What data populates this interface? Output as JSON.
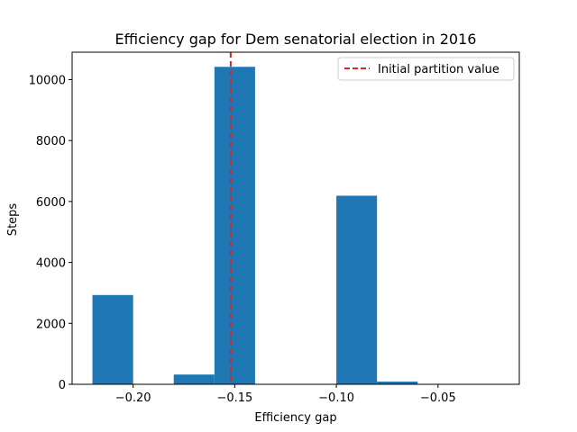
{
  "chart_data": {
    "type": "bar",
    "title": "Efficiency gap for Dem senatorial election in 2016",
    "xlabel": "Efficiency gap",
    "ylabel": "Steps",
    "xlim": [
      -0.23,
      -0.01
    ],
    "ylim": [
      0,
      10900
    ],
    "xticks": [
      -0.2,
      -0.15,
      -0.1,
      -0.05
    ],
    "xtick_labels": [
      "−0.20",
      "−0.15",
      "−0.10",
      "−0.05"
    ],
    "yticks": [
      0,
      2000,
      4000,
      6000,
      8000,
      10000
    ],
    "ytick_labels": [
      "0",
      "2000",
      "4000",
      "6000",
      "8000",
      "10000"
    ],
    "bin_edges": [
      -0.22,
      -0.2,
      -0.18,
      -0.16,
      -0.14,
      -0.12,
      -0.1,
      -0.08,
      -0.06,
      -0.04,
      -0.02
    ],
    "values": [
      2930,
      0,
      320,
      10420,
      0,
      0,
      6190,
      90,
      0,
      0
    ],
    "bar_color": "#1f77b4",
    "reference_line": {
      "x": -0.152,
      "color": "#d62728",
      "style": "dashed",
      "label": "Initial partition value"
    },
    "legend": {
      "placement": "top-right",
      "entries": [
        "Initial partition value"
      ]
    },
    "grid": false
  }
}
